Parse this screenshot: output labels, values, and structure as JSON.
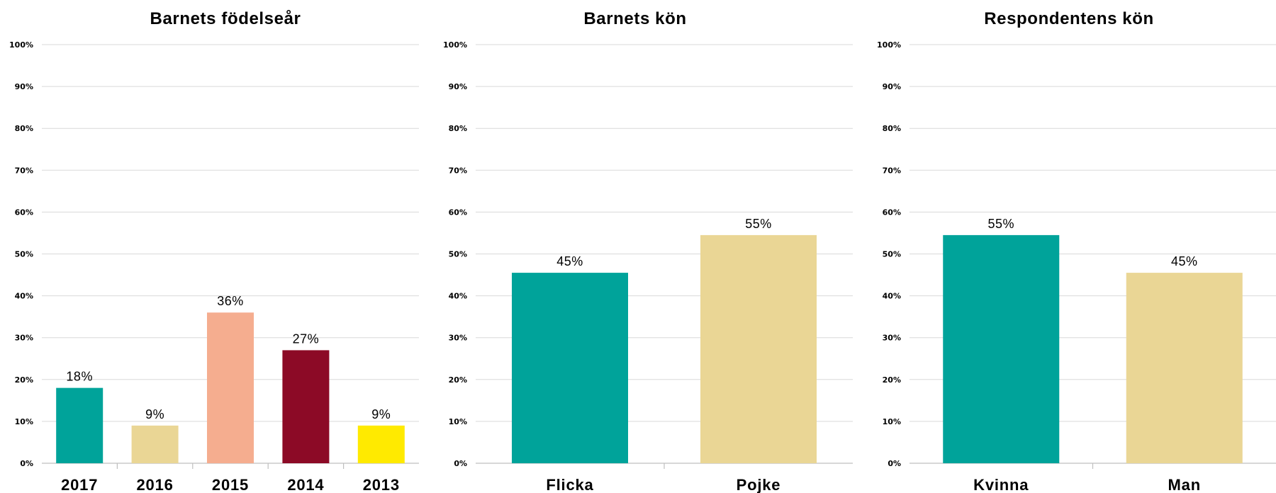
{
  "chart_data": [
    {
      "type": "bar",
      "title": "Barnets födelseår",
      "categories": [
        "2017",
        "2016",
        "2015",
        "2014",
        "2013"
      ],
      "values": [
        18,
        9,
        36,
        27,
        9
      ],
      "data_labels": [
        "18%",
        "9%",
        "36%",
        "27%",
        "9%"
      ],
      "colors": [
        "#00a39a",
        "#ead695",
        "#f5ad8f",
        "#8c0a26",
        "#ffea00"
      ],
      "yticks": [
        "0%",
        "10%",
        "20%",
        "30%",
        "40%",
        "50%",
        "60%",
        "70%",
        "80%",
        "90%",
        "100%"
      ],
      "ylim": [
        0,
        100
      ],
      "grid": true,
      "legend": "none"
    },
    {
      "type": "bar",
      "title": "Barnets kön",
      "categories": [
        "Flicka",
        "Pojke"
      ],
      "values": [
        45.5,
        54.5
      ],
      "data_labels": [
        "45%",
        "55%"
      ],
      "colors": [
        "#00a39a",
        "#ead695"
      ],
      "yticks": [
        "0%",
        "10%",
        "20%",
        "30%",
        "40%",
        "50%",
        "60%",
        "70%",
        "80%",
        "90%",
        "100%"
      ],
      "ylim": [
        0,
        100
      ],
      "grid": true,
      "legend": "none"
    },
    {
      "type": "bar",
      "title": "Respondentens kön",
      "categories": [
        "Kvinna",
        "Man"
      ],
      "values": [
        54.5,
        45.5
      ],
      "data_labels": [
        "55%",
        "45%"
      ],
      "colors": [
        "#00a39a",
        "#ead695"
      ],
      "yticks": [
        "0%",
        "10%",
        "20%",
        "30%",
        "40%",
        "50%",
        "60%",
        "70%",
        "80%",
        "90%",
        "100%"
      ],
      "ylim": [
        0,
        100
      ],
      "grid": true,
      "legend": "none"
    }
  ]
}
